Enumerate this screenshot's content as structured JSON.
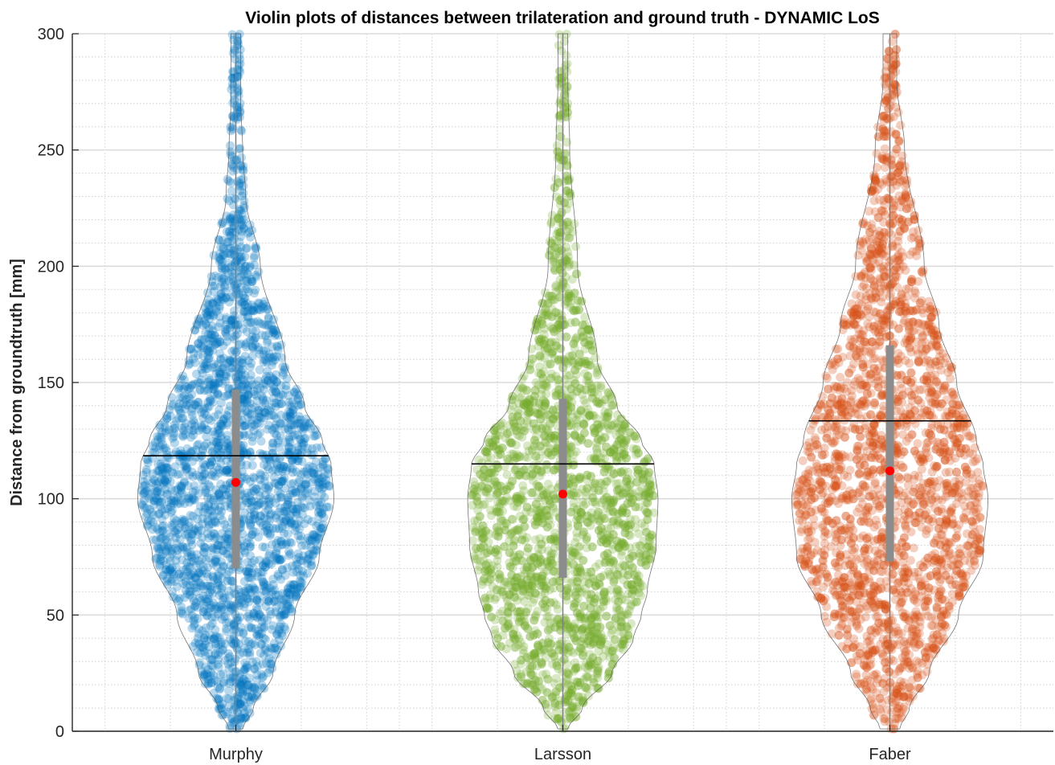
{
  "chart_data": {
    "type": "violin",
    "title": "Violin plots of distances between trilateration and ground truth - DYNAMIC LoS",
    "xlabel": "",
    "ylabel": "Distance from groundtruth [mm]",
    "ylim": [
      0,
      300
    ],
    "yticks": [
      0,
      50,
      100,
      150,
      200,
      250,
      300
    ],
    "grid": "major and minor",
    "categories": [
      "Murphy",
      "Larsson",
      "Faber"
    ],
    "series": [
      {
        "category": "Murphy",
        "color": "#0072BD",
        "median": 107,
        "mean": 118.5,
        "q1": 70,
        "q3": 147,
        "min": 1,
        "max": 300,
        "density_y": [
          1,
          10,
          25,
          50,
          75,
          100,
          115,
          125,
          140,
          160,
          200,
          230,
          250,
          270,
          300
        ],
        "density_w": [
          0.07,
          0.18,
          0.38,
          0.6,
          0.85,
          1.0,
          0.97,
          0.88,
          0.7,
          0.5,
          0.25,
          0.1,
          0.07,
          0.05,
          0.05
        ]
      },
      {
        "category": "Larsson",
        "color": "#77AC30",
        "median": 102,
        "mean": 115,
        "q1": 66,
        "q3": 143,
        "min": 1,
        "max": 300,
        "density_y": [
          1,
          10,
          25,
          40,
          50,
          60,
          80,
          100,
          115,
          125,
          140,
          160,
          200,
          250,
          280,
          300
        ],
        "density_w": [
          0.05,
          0.2,
          0.5,
          0.72,
          0.8,
          0.86,
          0.95,
          0.97,
          0.93,
          0.8,
          0.55,
          0.35,
          0.15,
          0.07,
          0.05,
          0.05
        ]
      },
      {
        "category": "Faber",
        "color": "#D95319",
        "median": 112,
        "mean": 133.5,
        "q1": 73,
        "q3": 166,
        "min": 1,
        "max": 300,
        "density_y": [
          1,
          10,
          25,
          50,
          75,
          100,
          115,
          125,
          150,
          175,
          200,
          250,
          280,
          300
        ],
        "density_w": [
          0.1,
          0.2,
          0.4,
          0.7,
          0.95,
          1.0,
          0.95,
          0.88,
          0.68,
          0.5,
          0.35,
          0.15,
          0.07,
          0.07
        ]
      }
    ]
  }
}
